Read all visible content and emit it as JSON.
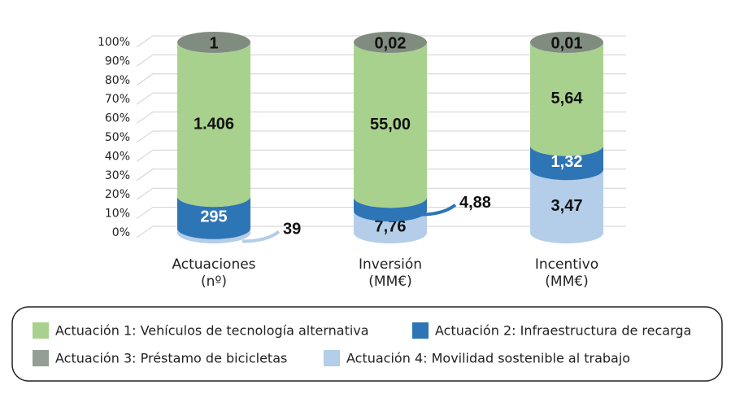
{
  "chart_data": {
    "type": "stacked-cylinder-100",
    "categories": [
      [
        "Actuaciones",
        "(nº)"
      ],
      [
        "Inversión",
        "(MM€)"
      ],
      [
        "Incentivo",
        "(MM€)"
      ]
    ],
    "ylim": [
      0,
      100
    ],
    "yticks": [
      {
        "value": 0,
        "label": "0%"
      },
      {
        "value": 10,
        "label": "10%"
      },
      {
        "value": 20,
        "label": "20%"
      },
      {
        "value": 30,
        "label": "30%"
      },
      {
        "value": 40,
        "label": "40%"
      },
      {
        "value": 50,
        "label": "50%"
      },
      {
        "value": 60,
        "label": "60%"
      },
      {
        "value": 70,
        "label": "70%"
      },
      {
        "value": 80,
        "label": "80%"
      },
      {
        "value": 90,
        "label": "90%"
      },
      {
        "value": 100,
        "label": "100%"
      }
    ],
    "grid": true,
    "series": [
      {
        "name": "Actuación 4: Movilidad sostenible al trabajo",
        "color": "#b4cde8",
        "values": [
          39,
          7.76,
          3.47
        ],
        "value_labels": [
          "39",
          "7,76",
          "3,47"
        ]
      },
      {
        "name": "Actuación 2: Infraestructura de recarga",
        "color": "#2e75b6",
        "values": [
          295,
          4.88,
          1.32
        ],
        "value_labels": [
          "295",
          "4,88",
          "1,32"
        ]
      },
      {
        "name": "Actuación 1: Vehículos de tecnología alternativa",
        "color": "#a9d18e",
        "values": [
          1406,
          55.0,
          5.64
        ],
        "value_labels": [
          "1.406",
          "55,00",
          "5,64"
        ]
      },
      {
        "name": "Actuación 3: Préstamo de bicicletas",
        "color": "#949e94",
        "values": [
          1,
          0.02,
          0.01
        ],
        "value_labels": [
          "1",
          "0,02",
          "0,01"
        ]
      }
    ]
  }
}
